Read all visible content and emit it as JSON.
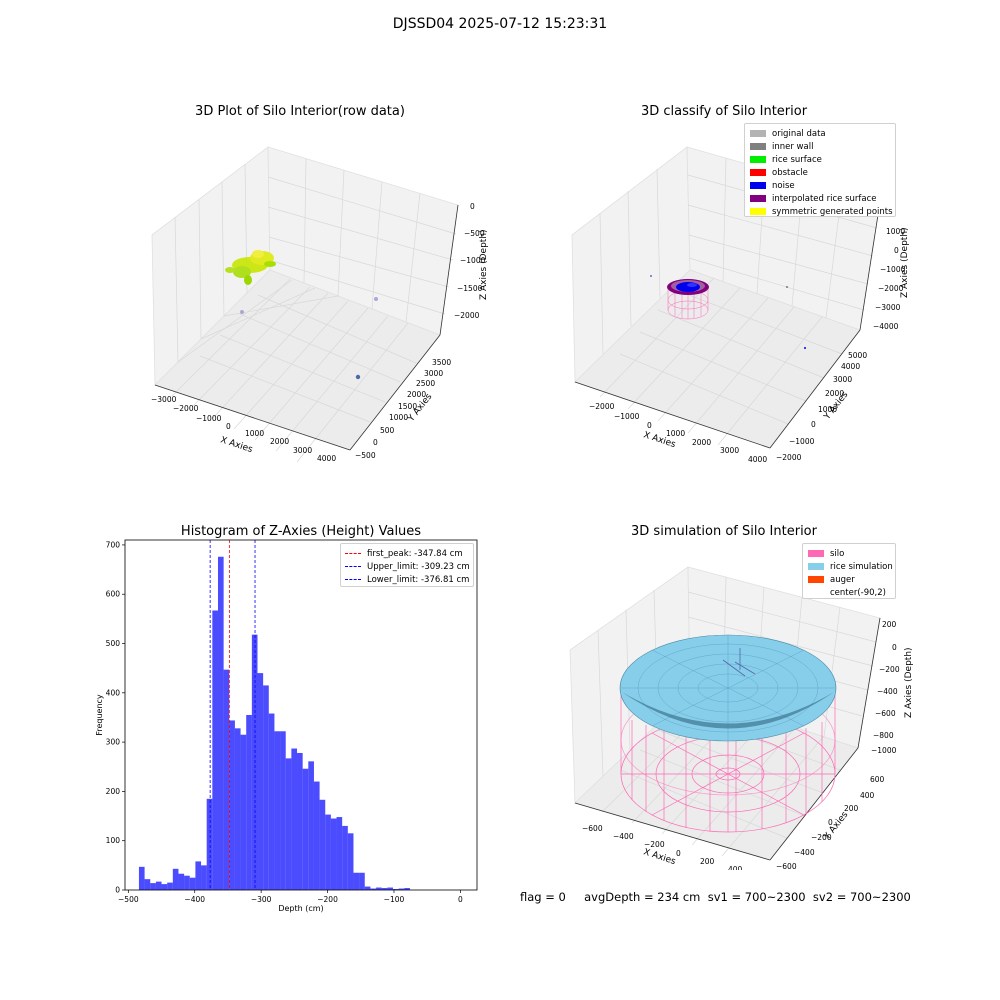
{
  "figure": {
    "suptitle": "DJSSD04 2025-07-12 15:23:31"
  },
  "panel_raw": {
    "title": "3D Plot of Silo Interior(row data)",
    "xlabel": "X Axies",
    "ylabel": "Y Axies",
    "zlabel": "Z Axies (Depth)",
    "xticks": [
      "−3000",
      "−2000",
      "−1000",
      "0",
      "1000",
      "2000",
      "3000",
      "4000"
    ],
    "yticks": [
      "−500",
      "0",
      "500",
      "1000",
      "1500",
      "2000",
      "2500",
      "3000",
      "3500"
    ],
    "zticks": [
      "0",
      "−500",
      "−1000",
      "−1500",
      "−2000"
    ]
  },
  "panel_classify": {
    "title": "3D classify of Silo Interior",
    "xlabel": "X Axies",
    "ylabel": "Y Axies",
    "zlabel": "Z Axies (Depth)",
    "xticks": [
      "−2000",
      "−1000",
      "0",
      "1000",
      "2000",
      "3000",
      "4000"
    ],
    "yticks": [
      "−2000",
      "−1000",
      "0",
      "1000",
      "2000",
      "3000",
      "4000",
      "5000"
    ],
    "zticks": [
      "1000",
      "0",
      "−1000",
      "−2000",
      "−3000",
      "−4000"
    ],
    "legend": [
      {
        "label": "original data",
        "color": "#b3b3b3"
      },
      {
        "label": "inner wall",
        "color": "#808080"
      },
      {
        "label": "rice surface",
        "color": "#00ee00"
      },
      {
        "label": "obstacle",
        "color": "#ff0000"
      },
      {
        "label": "noise",
        "color": "#0000ee"
      },
      {
        "label": "interpolated rice surface",
        "color": "#800080"
      },
      {
        "label": "symmetric generated points",
        "color": "#ffff00"
      }
    ]
  },
  "panel_sim": {
    "title": "3D simulation of Silo Interior",
    "xlabel": "X Axies",
    "ylabel": "Y Axies",
    "zlabel": "Z Axies (Depth)",
    "xticks": [
      "−600",
      "−400",
      "−200",
      "0",
      "200",
      "400"
    ],
    "yticks": [
      "−600",
      "−400",
      "−200",
      "0",
      "200",
      "400",
      "600"
    ],
    "zticks": [
      "200",
      "0",
      "−200",
      "−400",
      "−600",
      "−800",
      "−1000"
    ],
    "legend": [
      {
        "label": "silo",
        "color": "#ff69b4"
      },
      {
        "label": "rice simulation",
        "color": "#87ceeb"
      },
      {
        "label": "auger",
        "color": "#ff4500"
      },
      {
        "label": "center(-90,2)",
        "color": ""
      }
    ]
  },
  "status_line": "flag = 0     avgDepth = 234 cm  sv1 = 700~2300  sv2 = 700~2300",
  "chart_data": [
    {
      "type": "bar",
      "title": "Histogram of Z-Axies (Height) Values",
      "xlabel": "Depth (cm)",
      "ylabel": "Frequency",
      "xlim": [
        -505,
        25
      ],
      "ylim": [
        0,
        710
      ],
      "xticks": [
        -500,
        -400,
        -300,
        -200,
        -100,
        0
      ],
      "yticks": [
        0,
        100,
        200,
        300,
        400,
        500,
        600,
        700
      ],
      "bar_color": "#0000ff",
      "bin_edges_start": -484,
      "bin_width": 8.5,
      "values": [
        47,
        22,
        14,
        17,
        12,
        15,
        43,
        33,
        29,
        25,
        58,
        50,
        185,
        567,
        676,
        447,
        344,
        328,
        315,
        355,
        518,
        440,
        415,
        358,
        322,
        322,
        267,
        287,
        278,
        246,
        261,
        220,
        183,
        153,
        145,
        148,
        130,
        115,
        35,
        35,
        7,
        3,
        5,
        4,
        5,
        2,
        3,
        4
      ],
      "lines": [
        {
          "label": "first_peak: -347.84 cm",
          "x": -347.84,
          "color": "#ff0000"
        },
        {
          "label": "Upper_limit: -309.23 cm",
          "x": -309.23,
          "color": "#0000ff"
        },
        {
          "label": "Lower_limit: -376.81 cm",
          "x": -376.81,
          "color": "#0000ff"
        }
      ],
      "legend_position": "top-right"
    }
  ]
}
